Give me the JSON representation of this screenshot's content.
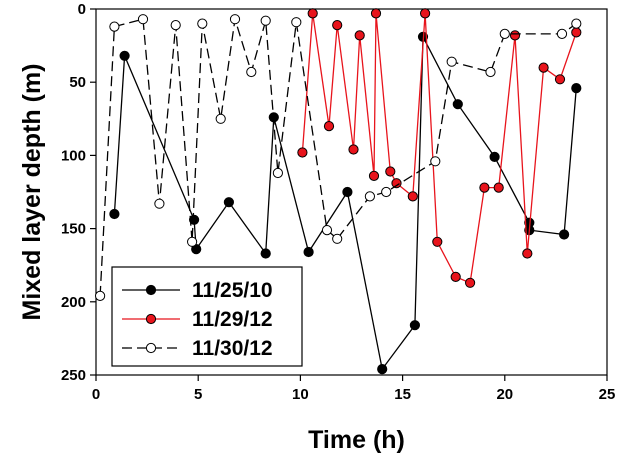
{
  "chart_data": {
    "type": "line",
    "xlabel": "Time (h)",
    "ylabel": "Mixed layer depth (m)",
    "xlim": [
      0,
      25
    ],
    "ylim": [
      0,
      250
    ],
    "y_inverted": true,
    "x_ticks": [
      "0",
      "5",
      "10",
      "15",
      "20",
      "25"
    ],
    "y_ticks": [
      "0",
      "50",
      "100",
      "150",
      "200",
      "250"
    ],
    "legend_position": "bottom-left",
    "series": [
      {
        "name": "11/25/10",
        "color": "#000000",
        "marker": "filled-circle",
        "line": "solid",
        "points": [
          [
            0.9,
            140
          ],
          [
            1.4,
            32
          ],
          [
            4.8,
            144
          ],
          [
            4.9,
            164
          ],
          [
            6.5,
            132
          ],
          [
            8.3,
            167
          ],
          [
            8.7,
            74
          ],
          [
            10.4,
            166
          ],
          [
            12.3,
            125
          ],
          [
            14.0,
            246
          ],
          [
            15.6,
            216
          ],
          [
            16.0,
            19
          ],
          [
            17.7,
            65
          ],
          [
            19.5,
            101
          ],
          [
            21.2,
            146
          ],
          [
            21.2,
            151
          ],
          [
            22.9,
            154
          ],
          [
            23.5,
            54
          ]
        ]
      },
      {
        "name": "11/29/12",
        "color": "#e8141c",
        "marker": "filled-circle",
        "line": "solid",
        "points": [
          [
            10.1,
            98
          ],
          [
            10.6,
            3
          ],
          [
            11.4,
            80
          ],
          [
            11.8,
            11
          ],
          [
            12.6,
            96
          ],
          [
            12.9,
            18
          ],
          [
            13.6,
            114
          ],
          [
            13.7,
            3
          ],
          [
            14.4,
            111
          ],
          [
            14.7,
            119
          ],
          [
            15.5,
            128
          ],
          [
            16.1,
            3
          ],
          [
            16.7,
            159
          ],
          [
            17.6,
            183
          ],
          [
            18.3,
            187
          ],
          [
            19.0,
            122
          ],
          [
            19.7,
            122
          ],
          [
            20.5,
            18
          ],
          [
            21.1,
            167
          ],
          [
            21.9,
            40
          ],
          [
            22.7,
            48
          ],
          [
            23.5,
            16
          ]
        ]
      },
      {
        "name": "11/30/12",
        "color": "#000000",
        "marker": "open-circle",
        "line": "dashed",
        "points": [
          [
            0.2,
            196
          ],
          [
            0.9,
            12
          ],
          [
            2.3,
            7
          ],
          [
            3.1,
            133
          ],
          [
            3.9,
            11
          ],
          [
            4.7,
            159
          ],
          [
            5.2,
            10
          ],
          [
            6.1,
            75
          ],
          [
            6.8,
            7
          ],
          [
            7.6,
            43
          ],
          [
            8.3,
            8
          ],
          [
            8.9,
            112
          ],
          [
            9.8,
            9
          ],
          [
            11.3,
            151
          ],
          [
            11.8,
            157
          ],
          [
            13.4,
            128
          ],
          [
            14.2,
            125
          ],
          [
            16.6,
            104
          ],
          [
            17.4,
            36
          ],
          [
            19.3,
            43
          ],
          [
            20.0,
            17
          ],
          [
            22.8,
            17
          ],
          [
            23.5,
            10
          ]
        ]
      }
    ]
  }
}
